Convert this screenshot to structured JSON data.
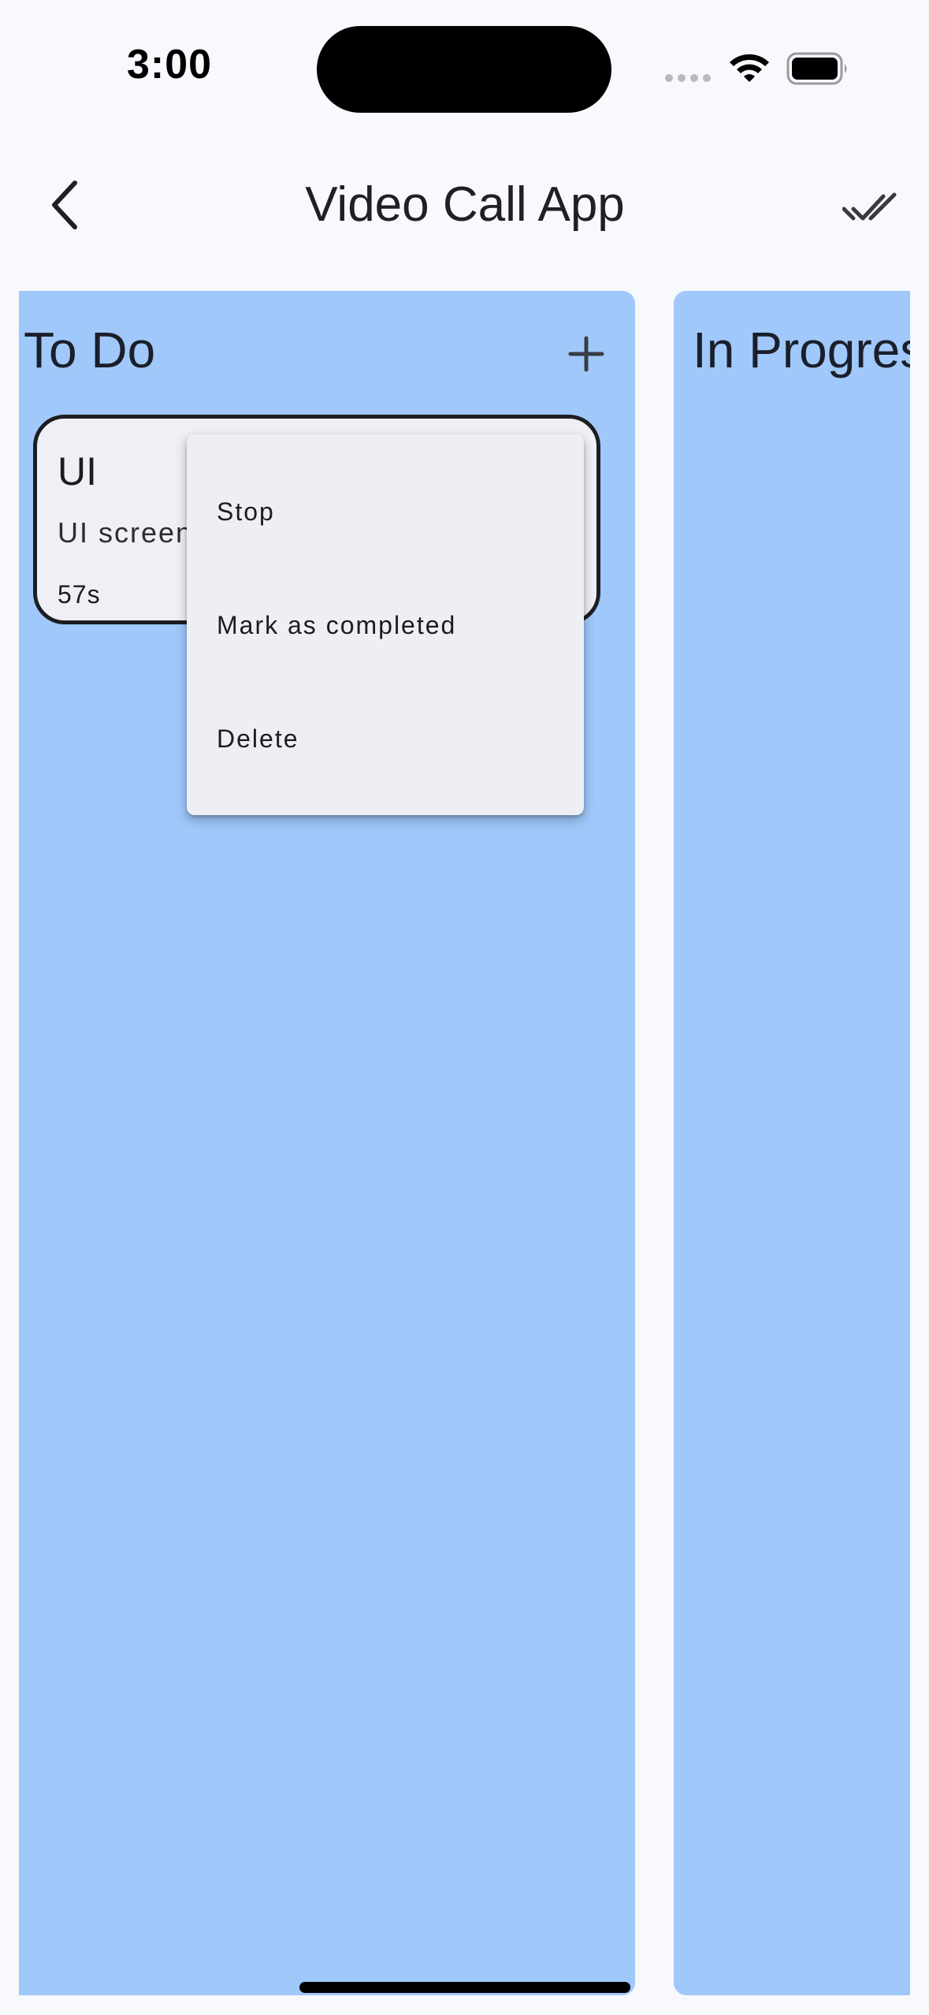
{
  "status_bar": {
    "time": "3:00"
  },
  "app_bar": {
    "title": "Video Call App",
    "back_icon": "chevron-left-icon",
    "action_icon": "done-all-icon"
  },
  "columns": [
    {
      "title": "To Do",
      "add_icon": "plus-icon",
      "cards": [
        {
          "title": "UI",
          "description": "UI screen",
          "timer": "57s"
        }
      ]
    },
    {
      "title": "In Progress"
    }
  ],
  "popup_menu": {
    "items": [
      {
        "label": "Stop"
      },
      {
        "label": "Mark as completed"
      },
      {
        "label": "Delete"
      }
    ]
  },
  "colors": {
    "background": "#f7f9fd",
    "column": "#a0c8fb",
    "card": "#eef0f6",
    "menu": "#eeeff3"
  }
}
